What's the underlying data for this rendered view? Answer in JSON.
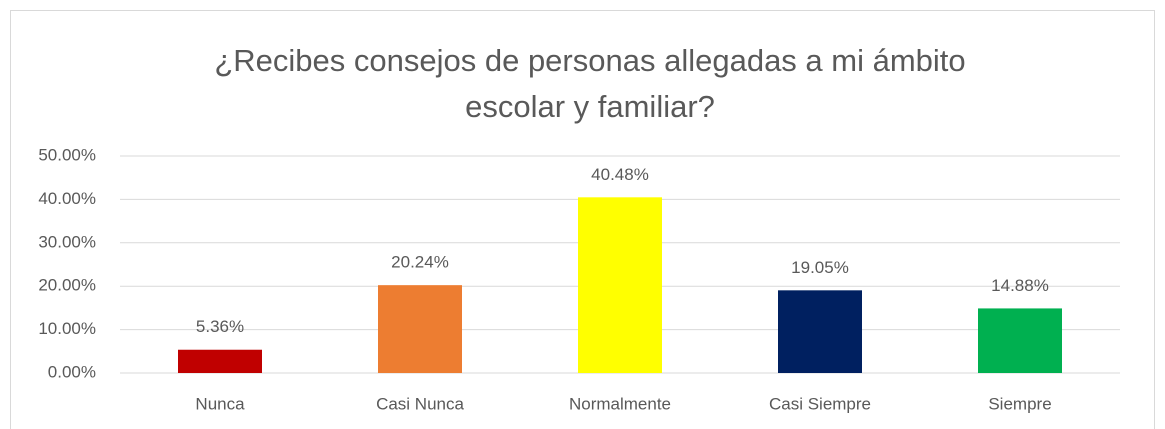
{
  "chart_data": {
    "type": "bar",
    "title": "¿Recibes consejos de personas allegadas a mi ámbito escolar y familiar?",
    "categories": [
      "Nunca",
      "Casi Nunca",
      "Normalmente",
      "Casi Siempre",
      "Siempre"
    ],
    "values": [
      5.36,
      20.24,
      40.48,
      19.05,
      14.88
    ],
    "value_labels": [
      "5.36%",
      "20.24%",
      "40.48%",
      "19.05%",
      "14.88%"
    ],
    "colors": [
      "#c00000",
      "#ed7d31",
      "#ffff00",
      "#002060",
      "#00b050"
    ],
    "ylim": [
      0,
      50
    ],
    "yticks": [
      {
        "value": 0,
        "label": "0.00%"
      },
      {
        "value": 10,
        "label": "10.00%"
      },
      {
        "value": 20,
        "label": "20.00%"
      },
      {
        "value": 30,
        "label": "30.00%"
      },
      {
        "value": 40,
        "label": "40.00%"
      },
      {
        "value": 50,
        "label": "50.00%"
      }
    ],
    "grid": true
  }
}
